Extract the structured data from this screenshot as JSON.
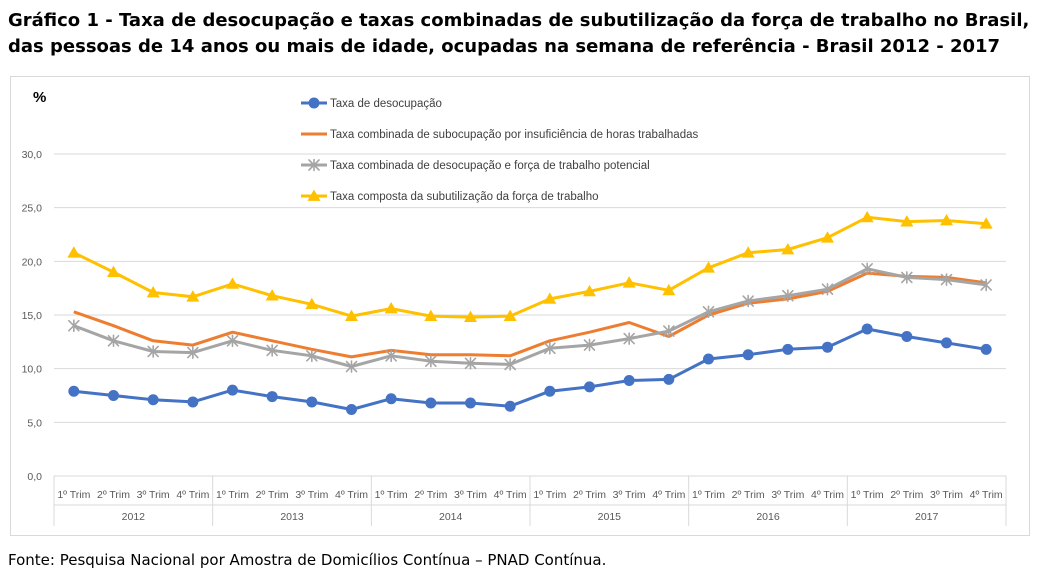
{
  "title": "Gráfico 1 - Taxa de desocupação e taxas combinadas de subutilização da força de trabalho no Brasil, das pessoas de 14 anos ou mais de idade, ocupadas na semana de referência - Brasil 2012 - 2017",
  "source": "Fonte: Pesquisa Nacional por Amostra de Domicílios Contínua – PNAD Contínua.",
  "chart_data": {
    "type": "line",
    "unit_label": "%",
    "ylim": [
      0,
      30
    ],
    "yticks": [
      "0,0",
      "5,0",
      "10,0",
      "15,0",
      "20,0",
      "25,0",
      "30,0"
    ],
    "grid": true,
    "legend_position": "top-left",
    "years": [
      "2012",
      "2013",
      "2014",
      "2015",
      "2016",
      "2017"
    ],
    "quarters": [
      "1º Trim",
      "2º Trim",
      "3º Trim",
      "4º Trim"
    ],
    "series": [
      {
        "name": "Taxa de desocupação",
        "color": "#4472C4",
        "marker": "circle",
        "values": [
          7.9,
          7.5,
          7.1,
          6.9,
          8.0,
          7.4,
          6.9,
          6.2,
          7.2,
          6.8,
          6.8,
          6.5,
          7.9,
          8.3,
          8.9,
          9.0,
          10.9,
          11.3,
          11.8,
          12.0,
          13.7,
          13.0,
          12.4,
          11.8
        ]
      },
      {
        "name": "Taxa combinada de subocupação por insuficiência de horas trabalhadas",
        "color": "#ED7D31",
        "marker": "none",
        "values": [
          15.3,
          14.0,
          12.6,
          12.2,
          13.4,
          12.6,
          11.8,
          11.1,
          11.7,
          11.3,
          11.3,
          11.2,
          12.6,
          13.4,
          14.3,
          13.0,
          15.0,
          16.1,
          16.5,
          17.2,
          18.9,
          18.6,
          18.5,
          18.0
        ]
      },
      {
        "name": "Taxa combinada de desocupação e força de trabalho potencial",
        "color": "#A5A5A5",
        "marker": "star",
        "values": [
          14.0,
          12.6,
          11.6,
          11.5,
          12.6,
          11.7,
          11.2,
          10.2,
          11.2,
          10.7,
          10.5,
          10.4,
          11.9,
          12.2,
          12.8,
          13.5,
          15.3,
          16.3,
          16.8,
          17.4,
          19.3,
          18.5,
          18.3,
          17.8
        ]
      },
      {
        "name": "Taxa composta da subutilização da força de trabalho",
        "color": "#FFC000",
        "marker": "triangle",
        "values": [
          20.8,
          19.0,
          17.1,
          16.7,
          17.9,
          16.8,
          16.0,
          14.9,
          15.6,
          14.9,
          14.8,
          14.9,
          16.5,
          17.2,
          18.0,
          17.3,
          19.4,
          20.8,
          21.1,
          22.2,
          24.1,
          23.7,
          23.8,
          23.5
        ]
      }
    ]
  }
}
